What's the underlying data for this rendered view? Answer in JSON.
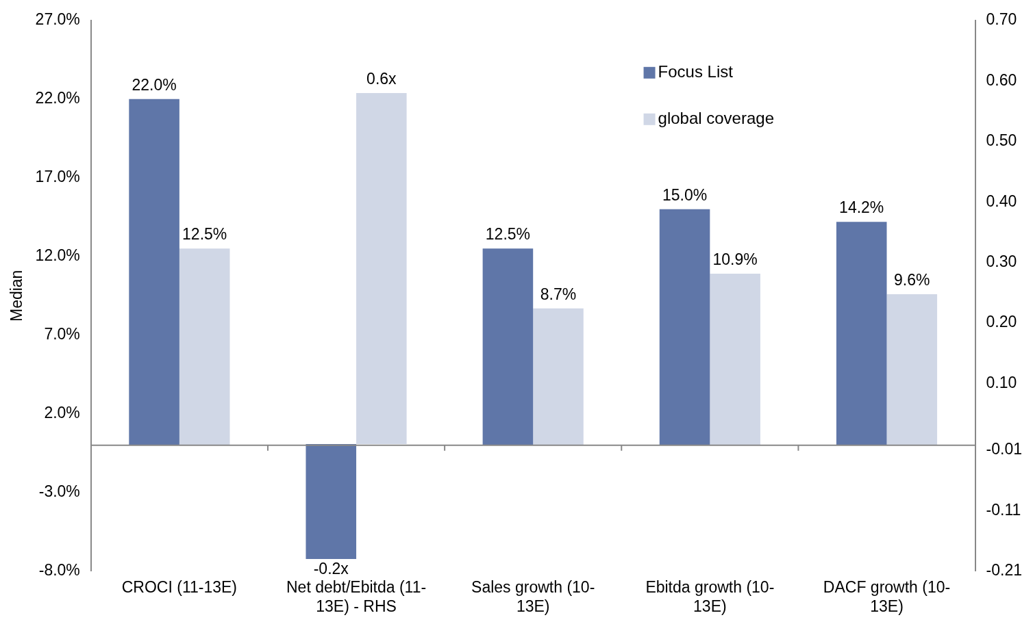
{
  "chart_data": {
    "type": "bar",
    "ylabel": "Median",
    "categories": [
      "CROCI (11-13E)",
      "Net debt/Ebitda (11-13E) - RHS",
      "Sales growth (10-13E)",
      "Ebitda growth (10-13E)",
      "DACF growth (10-13E)"
    ],
    "series": [
      {
        "name": "Focus List",
        "color": "#5f76a8",
        "values": [
          22.0,
          null,
          12.5,
          15.0,
          14.2
        ],
        "value_labels": [
          "22.0%",
          null,
          "12.5%",
          "15.0%",
          "14.2%"
        ]
      },
      {
        "name": "global coverage",
        "color": "#d0d7e6",
        "values": [
          12.5,
          null,
          8.7,
          10.9,
          9.6
        ],
        "value_labels": [
          "12.5%",
          null,
          "8.7%",
          "10.9%",
          "9.6%"
        ]
      },
      {
        "color": "#5f76a8",
        "axis": "y2",
        "values": [
          null,
          -0.19,
          null,
          null,
          null
        ],
        "value_labels": [
          null,
          "-0.2x",
          null,
          null,
          null
        ]
      },
      {
        "color": "#d0d7e6",
        "axis": "y2",
        "values": [
          null,
          0.58,
          null,
          null,
          null
        ],
        "value_labels": [
          null,
          "0.6x",
          null,
          null,
          null
        ]
      }
    ],
    "ylim": [
      -8,
      27
    ],
    "yticks": [
      {
        "value": -8,
        "label": "-8.0%"
      },
      {
        "value": -3,
        "label": "-3.0%"
      },
      {
        "value": 2,
        "label": "2.0%"
      },
      {
        "value": 7,
        "label": "7.0%"
      },
      {
        "value": 12,
        "label": "12.0%"
      },
      {
        "value": 17,
        "label": "17.0%"
      },
      {
        "value": 22,
        "label": "22.0%"
      },
      {
        "value": 27,
        "label": "27.0%"
      }
    ],
    "y2lim": [
      -0.21,
      0.7
    ],
    "y2ticks": [
      -0.21,
      -0.11,
      -0.01,
      {
        "value": 0.1,
        "label": "0.10"
      },
      {
        "value": 0.2,
        "label": "0.20"
      },
      {
        "value": 0.3,
        "label": "0.30"
      },
      {
        "value": 0.4,
        "label": "0.40"
      },
      {
        "value": 0.5,
        "label": "0.50"
      },
      {
        "value": 0.6,
        "label": "0.60"
      },
      {
        "value": 0.7,
        "label": "0.70"
      }
    ],
    "grid": false,
    "legend": "top right"
  }
}
